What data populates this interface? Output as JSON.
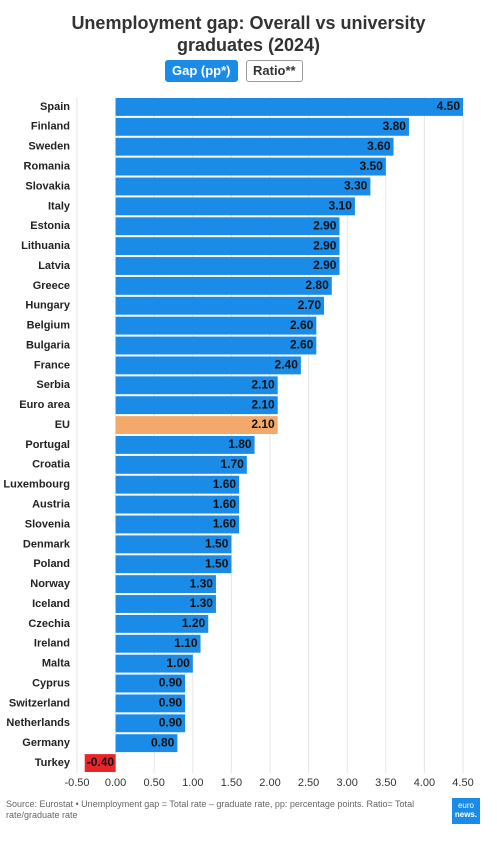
{
  "chart_data": {
    "type": "hbar",
    "title": "Unemployment gap: Overall vs university graduates (2024)",
    "buttons": [
      "Gap (pp*)",
      "Ratio**"
    ],
    "categories": [
      "Spain",
      "Finland",
      "Sweden",
      "Romania",
      "Slovakia",
      "Italy",
      "Estonia",
      "Lithuania",
      "Latvia",
      "Greece",
      "Hungary",
      "Belgium",
      "Bulgaria",
      "France",
      "Serbia",
      "Euro area",
      "EU",
      "Portugal",
      "Croatia",
      "Luxembourg",
      "Austria",
      "Slovenia",
      "Denmark",
      "Poland",
      "Norway",
      "Iceland",
      "Czechia",
      "Ireland",
      "Malta",
      "Cyprus",
      "Switzerland",
      "Netherlands",
      "Germany",
      "Turkey"
    ],
    "values": [
      4.5,
      3.8,
      3.6,
      3.5,
      3.3,
      3.1,
      2.9,
      2.9,
      2.9,
      2.8,
      2.7,
      2.6,
      2.6,
      2.4,
      2.1,
      2.1,
      2.1,
      1.8,
      1.7,
      1.6,
      1.6,
      1.6,
      1.5,
      1.5,
      1.3,
      1.3,
      1.2,
      1.1,
      1.0,
      0.9,
      0.9,
      0.9,
      0.8,
      -0.4
    ],
    "value_labels": [
      "4.50",
      "3.80",
      "3.60",
      "3.50",
      "3.30",
      "3.10",
      "2.90",
      "2.90",
      "2.90",
      "2.80",
      "2.70",
      "2.60",
      "2.60",
      "2.40",
      "2.10",
      "2.10",
      "2.10",
      "1.80",
      "1.70",
      "1.60",
      "1.60",
      "1.60",
      "1.50",
      "1.50",
      "1.30",
      "1.30",
      "1.20",
      "1.10",
      "1.00",
      "0.90",
      "0.90",
      "0.90",
      "0.80",
      "-0.40"
    ],
    "colors": [
      "#1a8be6",
      "#1a8be6",
      "#1a8be6",
      "#1a8be6",
      "#1a8be6",
      "#1a8be6",
      "#1a8be6",
      "#1a8be6",
      "#1a8be6",
      "#1a8be6",
      "#1a8be6",
      "#1a8be6",
      "#1a8be6",
      "#1a8be6",
      "#1a8be6",
      "#1a8be6",
      "#f2a96a",
      "#1a8be6",
      "#1a8be6",
      "#1a8be6",
      "#1a8be6",
      "#1a8be6",
      "#1a8be6",
      "#1a8be6",
      "#1a8be6",
      "#1a8be6",
      "#1a8be6",
      "#1a8be6",
      "#1a8be6",
      "#1a8be6",
      "#1a8be6",
      "#1a8be6",
      "#1a8be6",
      "#e8262a"
    ],
    "xlim": [
      -0.5,
      4.5
    ],
    "xticks": [
      {
        "value": -0.5,
        "label": "-0.50"
      },
      {
        "value": 0,
        "label": "0.00"
      },
      {
        "value": 0.5,
        "label": "0.50"
      },
      {
        "value": 1,
        "label": "1.00"
      },
      {
        "value": 1.5,
        "label": "1.50"
      },
      {
        "value": 2,
        "label": "2.00"
      },
      {
        "value": 2.5,
        "label": "2.50"
      },
      {
        "value": 3,
        "label": "3.00"
      },
      {
        "value": 3.5,
        "label": "3.50"
      },
      {
        "value": 4,
        "label": "4.00"
      },
      {
        "value": 4.5,
        "label": "4.50"
      }
    ],
    "grid": true,
    "source": "Source: Eurostat • Unemployment gap = Total rate – graduate rate, pp: percentage points. Ratio= Total rate/graduate rate",
    "logo": [
      "euro",
      "news."
    ]
  }
}
